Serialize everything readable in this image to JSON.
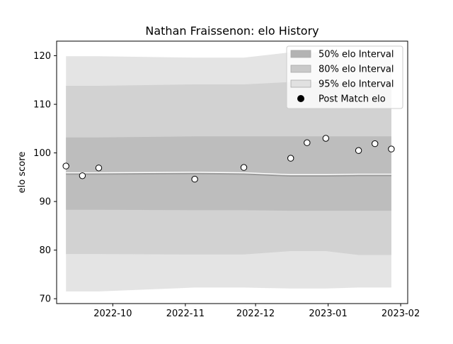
{
  "chart_data": {
    "type": "line",
    "title": "Nathan Fraissenon: elo History",
    "xlabel": "",
    "ylabel": "elo score",
    "xlim": [
      "2022-09-07",
      "2023-02-04"
    ],
    "ylim": [
      69,
      123
    ],
    "x_ticks": [
      {
        "date": "2022-10-01",
        "label": "2022-10"
      },
      {
        "date": "2022-11-01",
        "label": "2022-11"
      },
      {
        "date": "2022-12-01",
        "label": "2022-12"
      },
      {
        "date": "2023-01-01",
        "label": "2023-01"
      },
      {
        "date": "2023-02-01",
        "label": "2023-02"
      }
    ],
    "y_ticks": [
      70,
      80,
      90,
      100,
      110,
      120
    ],
    "grid": false,
    "legend_position": "top-right",
    "legend": [
      {
        "label": "50% elo Interval",
        "kind": "band",
        "color": "#b3b3b3"
      },
      {
        "label": "80% elo Interval",
        "kind": "band",
        "color": "#c9c9c9"
      },
      {
        "label": "95% elo Interval",
        "kind": "band",
        "color": "#e1e1e1"
      },
      {
        "label": "Post Match elo",
        "kind": "marker",
        "color": "#000000"
      }
    ],
    "colors": {
      "band50": "#bdbdbd",
      "band80": "#d2d2d2",
      "band95": "#e4e4e4",
      "mean_line": "#9a9a9a",
      "mean_highlight": "#ffffff",
      "marker_fill": "#ffffff",
      "marker_edge": "#000000"
    },
    "series": [
      {
        "name": "Post Match elo",
        "points": [
          {
            "x": "2022-09-11",
            "y": 97.3
          },
          {
            "x": "2022-09-18",
            "y": 95.3
          },
          {
            "x": "2022-09-25",
            "y": 96.9
          },
          {
            "x": "2022-11-05",
            "y": 94.6
          },
          {
            "x": "2022-11-26",
            "y": 97.0
          },
          {
            "x": "2022-12-16",
            "y": 98.9
          },
          {
            "x": "2022-12-23",
            "y": 102.1
          },
          {
            "x": "2022-12-31",
            "y": 103.0
          },
          {
            "x": "2023-01-14",
            "y": 100.5
          },
          {
            "x": "2023-01-21",
            "y": 101.9
          },
          {
            "x": "2023-01-28",
            "y": 100.8
          }
        ]
      }
    ],
    "mean": [
      {
        "x": "2022-09-11",
        "y": 95.7
      },
      {
        "x": "2022-09-25",
        "y": 95.7
      },
      {
        "x": "2022-11-05",
        "y": 95.8
      },
      {
        "x": "2022-11-26",
        "y": 95.7
      },
      {
        "x": "2022-12-16",
        "y": 95.3
      },
      {
        "x": "2022-12-31",
        "y": 95.3
      },
      {
        "x": "2023-01-14",
        "y": 95.4
      },
      {
        "x": "2023-01-28",
        "y": 95.4
      }
    ],
    "intervals": [
      {
        "level": "95%",
        "points": [
          {
            "x": "2022-09-11",
            "lo": 71.5,
            "hi": 119.9
          },
          {
            "x": "2022-09-25",
            "lo": 71.5,
            "hi": 119.9
          },
          {
            "x": "2022-11-05",
            "lo": 72.3,
            "hi": 119.6
          },
          {
            "x": "2022-11-26",
            "lo": 72.3,
            "hi": 119.6
          },
          {
            "x": "2022-12-16",
            "lo": 72.1,
            "hi": 120.7
          },
          {
            "x": "2022-12-31",
            "lo": 72.1,
            "hi": 120.7
          },
          {
            "x": "2023-01-14",
            "lo": 72.3,
            "hi": 120.5
          },
          {
            "x": "2023-01-28",
            "lo": 72.3,
            "hi": 120.5
          }
        ]
      },
      {
        "level": "80%",
        "points": [
          {
            "x": "2022-09-11",
            "lo": 79.2,
            "hi": 113.8
          },
          {
            "x": "2022-09-25",
            "lo": 79.2,
            "hi": 113.8
          },
          {
            "x": "2022-11-05",
            "lo": 79.1,
            "hi": 114.1
          },
          {
            "x": "2022-11-26",
            "lo": 79.1,
            "hi": 114.1
          },
          {
            "x": "2022-12-16",
            "lo": 79.8,
            "hi": 114.6
          },
          {
            "x": "2022-12-31",
            "lo": 79.8,
            "hi": 114.6
          },
          {
            "x": "2023-01-14",
            "lo": 79.0,
            "hi": 114.3
          },
          {
            "x": "2023-01-28",
            "lo": 79.0,
            "hi": 114.3
          }
        ]
      },
      {
        "level": "50%",
        "points": [
          {
            "x": "2022-09-11",
            "lo": 88.3,
            "hi": 103.2
          },
          {
            "x": "2022-09-25",
            "lo": 88.3,
            "hi": 103.2
          },
          {
            "x": "2022-11-05",
            "lo": 88.2,
            "hi": 103.4
          },
          {
            "x": "2022-11-26",
            "lo": 88.2,
            "hi": 103.4
          },
          {
            "x": "2022-12-16",
            "lo": 88.1,
            "hi": 103.4
          },
          {
            "x": "2022-12-31",
            "lo": 88.1,
            "hi": 103.4
          },
          {
            "x": "2023-01-14",
            "lo": 88.1,
            "hi": 103.4
          },
          {
            "x": "2023-01-28",
            "lo": 88.1,
            "hi": 103.4
          }
        ]
      }
    ]
  }
}
